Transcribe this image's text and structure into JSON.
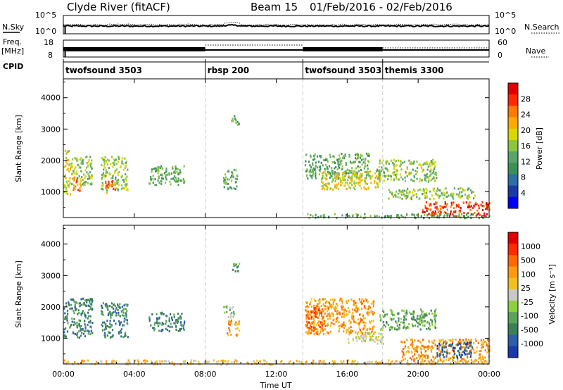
{
  "header": {
    "station": "Clyde River (fitACF)",
    "beam": "Beam 15",
    "date_range": "01/Feb/2016 - 02/Feb/2016"
  },
  "side_labels": {
    "nsky": "N.Sky",
    "nsearch": "N.Search",
    "freq": "Freq.",
    "freq_unit": "[MHz]",
    "nave": "Nave",
    "cpid": "CPID"
  },
  "small_axes": {
    "nsky_ticks": [
      "10^5",
      "10^0"
    ],
    "nsearch_ticks": [
      "10^5",
      "10^0"
    ],
    "freq_ticks": [
      "18",
      "8"
    ],
    "nave_ticks": [
      "60",
      "0"
    ]
  },
  "cpid_segments": [
    {
      "label": "twofsound 3503",
      "start": 0.0,
      "end": 8.0
    },
    {
      "label": "rbsp 200",
      "start": 8.0,
      "end": 13.5
    },
    {
      "label": "twofsound 3503",
      "start": 13.5,
      "end": 18.0
    },
    {
      "label": "themis 3300",
      "start": 18.0,
      "end": 24.0
    }
  ],
  "colors": {
    "power_scale": [
      "#0000ff",
      "#1a3aa6",
      "#2c6fa0",
      "#3d8f5a",
      "#5aa36a",
      "#8cc63f",
      "#d8d800",
      "#ffaa00",
      "#ff7a00",
      "#ff2a00",
      "#e00000"
    ],
    "velocity_scale": [
      "#1a3aa6",
      "#2c5fa8",
      "#3d7f5a",
      "#5aa35a",
      "#8cd040",
      "#c8c8c8",
      "#f0c020",
      "#ff9a10",
      "#ff6a00",
      "#ff2a00",
      "#e00000"
    ]
  },
  "chart_data": [
    {
      "type": "heatmap",
      "title": "",
      "xlabel": "",
      "ylabel": "Slant Range [km]",
      "xlim": [
        0,
        24
      ],
      "ylim": [
        180,
        4600
      ],
      "yticks": [
        1000,
        2000,
        3000,
        4000
      ],
      "colorbar_label": "Power [dB]",
      "colorbar_ticks": [
        "28",
        "24",
        "20",
        "16",
        "12",
        "8",
        "4"
      ],
      "regions": [
        {
          "t0": 0.0,
          "t1": 0.4,
          "r0": 950,
          "r1": 2350,
          "level": 6
        },
        {
          "t0": 0.4,
          "t1": 1.6,
          "r0": 1200,
          "r1": 2150,
          "level": 5
        },
        {
          "t0": 0.5,
          "t1": 1.0,
          "r0": 1050,
          "r1": 1500,
          "level": 8
        },
        {
          "t0": 2.1,
          "t1": 3.6,
          "r0": 1050,
          "r1": 2150,
          "level": 5
        },
        {
          "t0": 2.3,
          "t1": 2.9,
          "r0": 1000,
          "r1": 1400,
          "level": 8
        },
        {
          "t0": 4.8,
          "t1": 6.8,
          "r0": 1250,
          "r1": 1850,
          "level": 4
        },
        {
          "t0": 9.0,
          "t1": 9.8,
          "r0": 1100,
          "r1": 1750,
          "level": 4
        },
        {
          "t0": 9.4,
          "t1": 9.9,
          "r0": 3150,
          "r1": 3450,
          "level": 4
        },
        {
          "t0": 13.6,
          "t1": 17.2,
          "r0": 1450,
          "r1": 2250,
          "level": 4
        },
        {
          "t0": 14.5,
          "t1": 17.8,
          "r0": 1100,
          "r1": 1700,
          "level": 6
        },
        {
          "t0": 17.6,
          "t1": 21.0,
          "r0": 1350,
          "r1": 2050,
          "level": 5
        },
        {
          "t0": 18.3,
          "t1": 23.2,
          "r0": 800,
          "r1": 1150,
          "level": 5
        },
        {
          "t0": 20.2,
          "t1": 24.0,
          "r0": 250,
          "r1": 700,
          "level": 9
        },
        {
          "t0": 13.5,
          "t1": 24.0,
          "r0": 190,
          "r1": 320,
          "level": 4
        }
      ]
    },
    {
      "type": "heatmap",
      "title": "",
      "xlabel": "Time UT",
      "ylabel": "Slant Range [km]",
      "xlim": [
        0,
        24
      ],
      "ylim": [
        180,
        4600
      ],
      "yticks": [
        1000,
        2000,
        3000,
        4000
      ],
      "xticks": [
        "00:00",
        "04:00",
        "08:00",
        "12:00",
        "16:00",
        "20:00",
        "00:00"
      ],
      "colorbar_label": "Velocity [m s⁻¹]",
      "colorbar_ticks": [
        "1000",
        "500",
        "100",
        "25",
        "-25",
        "-100",
        "-500",
        "-1000"
      ],
      "regions": [
        {
          "t0": 0.0,
          "t1": 1.6,
          "r0": 1050,
          "r1": 2300,
          "level": 2
        },
        {
          "t0": 2.1,
          "t1": 3.6,
          "r0": 1050,
          "r1": 2150,
          "level": 2
        },
        {
          "t0": 4.8,
          "t1": 6.8,
          "r0": 1250,
          "r1": 1850,
          "level": 2
        },
        {
          "t0": 9.0,
          "t1": 9.6,
          "r0": 1650,
          "r1": 2050,
          "level": 4
        },
        {
          "t0": 9.2,
          "t1": 9.9,
          "r0": 1100,
          "r1": 1600,
          "level": 7
        },
        {
          "t0": 9.4,
          "t1": 9.9,
          "r0": 3150,
          "r1": 3450,
          "level": 3
        },
        {
          "t0": 13.6,
          "t1": 17.5,
          "r0": 1150,
          "r1": 2300,
          "level": 7
        },
        {
          "t0": 13.6,
          "t1": 14.6,
          "r0": 1200,
          "r1": 2000,
          "level": 8
        },
        {
          "t0": 16.0,
          "t1": 18.0,
          "r0": 850,
          "r1": 1250,
          "level": 5
        },
        {
          "t0": 17.8,
          "t1": 21.0,
          "r0": 1300,
          "r1": 1950,
          "level": 3
        },
        {
          "t0": 19.0,
          "t1": 24.0,
          "r0": 300,
          "r1": 1000,
          "level": 7
        },
        {
          "t0": 21.0,
          "t1": 23.0,
          "r0": 400,
          "r1": 900,
          "level": 1
        },
        {
          "t0": 0.0,
          "t1": 24.0,
          "r0": 190,
          "r1": 330,
          "level": 6
        }
      ]
    }
  ]
}
